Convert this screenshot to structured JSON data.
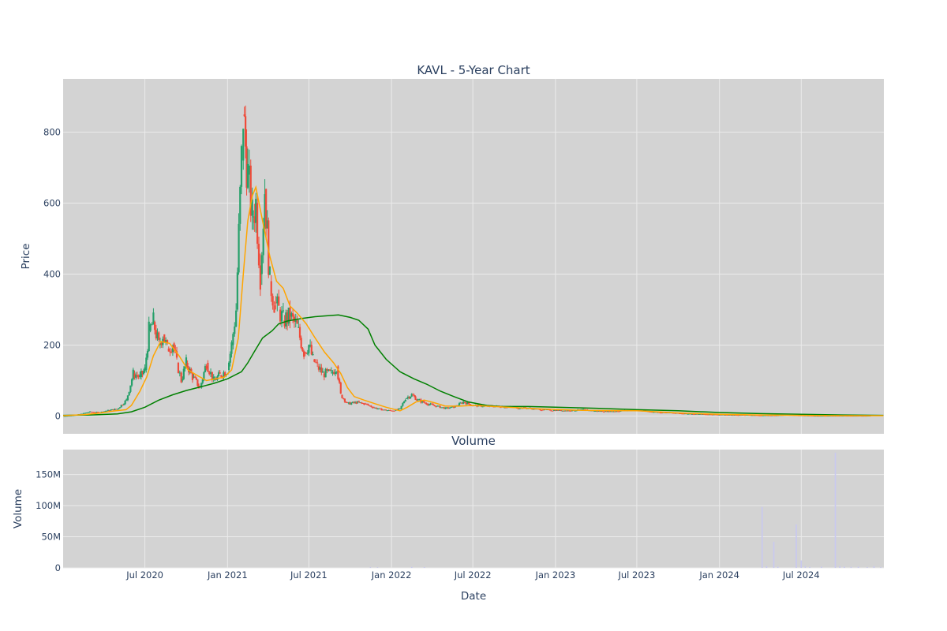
{
  "chart_data": [
    {
      "type": "candlestick",
      "title": "KAVL - 5-Year Chart",
      "ylabel": "Price",
      "ylim": [
        -50,
        950
      ],
      "yticks": [
        0,
        200,
        400,
        600,
        800
      ],
      "grid": true,
      "legend": "none",
      "colors": {
        "increasing": "#26a06a",
        "decreasing": "#ef4b3a",
        "short_ma": "#ffa500",
        "long_ma": "#008000",
        "plot_bg": "#d3d3d3"
      },
      "x_range": [
        "2020-01-01",
        "2025-01-01"
      ],
      "series": [
        {
          "kind": "ohlc",
          "points": [
            [
              "2020-01-01",
              0
            ],
            [
              "2020-01-21",
              2
            ],
            [
              "2020-02-10",
              6
            ],
            [
              "2020-03-01",
              12
            ],
            [
              "2020-03-21",
              10
            ],
            [
              "2020-04-10",
              16
            ],
            [
              "2020-05-01",
              20
            ],
            [
              "2020-05-21",
              45
            ],
            [
              "2020-06-05",
              120
            ],
            [
              "2020-06-20",
              110
            ],
            [
              "2020-07-01",
              130
            ],
            [
              "2020-07-10",
              240
            ],
            [
              "2020-07-20",
              265
            ],
            [
              "2020-08-01",
              200
            ],
            [
              "2020-08-10",
              230
            ],
            [
              "2020-08-20",
              190
            ],
            [
              "2020-09-01",
              205
            ],
            [
              "2020-09-10",
              150
            ],
            [
              "2020-09-20",
              100
            ],
            [
              "2020-10-01",
              150
            ],
            [
              "2020-10-15",
              110
            ],
            [
              "2020-11-01",
              80
            ],
            [
              "2020-11-15",
              150
            ],
            [
              "2020-12-01",
              100
            ],
            [
              "2020-12-15",
              115
            ],
            [
              "2021-01-01",
              130
            ],
            [
              "2021-01-10",
              200
            ],
            [
              "2021-01-20",
              300
            ],
            [
              "2021-02-01",
              720
            ],
            [
              "2021-02-05",
              850
            ],
            [
              "2021-02-10",
              760
            ],
            [
              "2021-02-15",
              680
            ],
            [
              "2021-02-25",
              560
            ],
            [
              "2021-03-05",
              600
            ],
            [
              "2021-03-15",
              400
            ],
            [
              "2021-03-25",
              640
            ],
            [
              "2021-04-05",
              380
            ],
            [
              "2021-04-15",
              320
            ],
            [
              "2021-04-25",
              300
            ],
            [
              "2021-05-05",
              270
            ],
            [
              "2021-05-20",
              280
            ],
            [
              "2021-06-05",
              250
            ],
            [
              "2021-06-20",
              180
            ],
            [
              "2021-07-01",
              200
            ],
            [
              "2021-07-10",
              160
            ],
            [
              "2021-07-20",
              140
            ],
            [
              "2021-08-01",
              120
            ],
            [
              "2021-08-20",
              120
            ],
            [
              "2021-09-01",
              140
            ],
            [
              "2021-09-10",
              60
            ],
            [
              "2021-09-25",
              35
            ],
            [
              "2021-10-15",
              38
            ],
            [
              "2021-11-01",
              35
            ],
            [
              "2021-11-20",
              25
            ],
            [
              "2021-12-10",
              18
            ],
            [
              "2022-01-01",
              15
            ],
            [
              "2022-01-20",
              20
            ],
            [
              "2022-02-01",
              50
            ],
            [
              "2022-02-15",
              60
            ],
            [
              "2022-03-01",
              45
            ],
            [
              "2022-03-20",
              35
            ],
            [
              "2022-04-10",
              28
            ],
            [
              "2022-05-01",
              22
            ],
            [
              "2022-05-20",
              25
            ],
            [
              "2022-06-10",
              40
            ],
            [
              "2022-07-01",
              30
            ],
            [
              "2022-08-01",
              28
            ],
            [
              "2022-09-01",
              27
            ],
            [
              "2022-10-01",
              24
            ],
            [
              "2022-11-01",
              22
            ],
            [
              "2022-12-01",
              18
            ],
            [
              "2023-01-01",
              16
            ],
            [
              "2023-02-01",
              15
            ],
            [
              "2023-03-01",
              18
            ],
            [
              "2023-04-01",
              14
            ],
            [
              "2023-05-01",
              13
            ],
            [
              "2023-06-01",
              15
            ],
            [
              "2023-07-01",
              17
            ],
            [
              "2023-08-01",
              12
            ],
            [
              "2023-09-01",
              10
            ],
            [
              "2023-10-01",
              8
            ],
            [
              "2023-11-01",
              6
            ],
            [
              "2023-12-01",
              5
            ],
            [
              "2024-01-01",
              4
            ],
            [
              "2024-02-01",
              3
            ],
            [
              "2024-03-01",
              3
            ],
            [
              "2024-04-01",
              2
            ],
            [
              "2024-05-01",
              2
            ],
            [
              "2024-06-01",
              3
            ],
            [
              "2024-07-01",
              2
            ],
            [
              "2024-08-01",
              1
            ],
            [
              "2024-09-01",
              1
            ],
            [
              "2024-10-01",
              1
            ],
            [
              "2024-11-01",
              1
            ],
            [
              "2024-12-01",
              1
            ]
          ]
        },
        {
          "kind": "ma_short",
          "points": [
            [
              "2020-01-01",
              1
            ],
            [
              "2020-02-15",
              4
            ],
            [
              "2020-03-20",
              8
            ],
            [
              "2020-04-20",
              14
            ],
            [
              "2020-05-20",
              18
            ],
            [
              "2020-06-01",
              30
            ],
            [
              "2020-06-20",
              70
            ],
            [
              "2020-07-05",
              110
            ],
            [
              "2020-07-20",
              170
            ],
            [
              "2020-08-05",
              210
            ],
            [
              "2020-08-25",
              205
            ],
            [
              "2020-09-15",
              170
            ],
            [
              "2020-10-05",
              130
            ],
            [
              "2020-10-25",
              115
            ],
            [
              "2020-11-15",
              100
            ],
            [
              "2020-12-05",
              105
            ],
            [
              "2020-12-25",
              110
            ],
            [
              "2021-01-10",
              130
            ],
            [
              "2021-01-25",
              220
            ],
            [
              "2021-02-05",
              400
            ],
            [
              "2021-02-15",
              550
            ],
            [
              "2021-02-25",
              620
            ],
            [
              "2021-03-05",
              645
            ],
            [
              "2021-03-20",
              550
            ],
            [
              "2021-04-05",
              450
            ],
            [
              "2021-04-20",
              380
            ],
            [
              "2021-05-05",
              360
            ],
            [
              "2021-05-20",
              310
            ],
            [
              "2021-06-05",
              290
            ],
            [
              "2021-06-25",
              260
            ],
            [
              "2021-07-15",
              220
            ],
            [
              "2021-08-05",
              180
            ],
            [
              "2021-08-25",
              150
            ],
            [
              "2021-09-10",
              120
            ],
            [
              "2021-09-25",
              80
            ],
            [
              "2021-10-10",
              55
            ],
            [
              "2021-11-01",
              45
            ],
            [
              "2021-11-25",
              35
            ],
            [
              "2021-12-20",
              25
            ],
            [
              "2022-01-20",
              15
            ],
            [
              "2022-02-05",
              25
            ],
            [
              "2022-02-25",
              40
            ],
            [
              "2022-03-15",
              45
            ],
            [
              "2022-04-05",
              38
            ],
            [
              "2022-05-01",
              28
            ],
            [
              "2022-06-01",
              28
            ],
            [
              "2022-07-01",
              30
            ],
            [
              "2022-08-01",
              28
            ],
            [
              "2022-10-01",
              24
            ],
            [
              "2022-12-01",
              20
            ],
            [
              "2023-03-01",
              16
            ],
            [
              "2023-07-01",
              15
            ],
            [
              "2023-10-01",
              9
            ],
            [
              "2024-01-01",
              5
            ],
            [
              "2024-04-01",
              3
            ],
            [
              "2024-07-01",
              2
            ],
            [
              "2024-10-01",
              1
            ],
            [
              "2024-12-31",
              1
            ]
          ]
        },
        {
          "kind": "ma_long",
          "points": [
            [
              "2020-01-01",
              2
            ],
            [
              "2020-03-01",
              3
            ],
            [
              "2020-05-01",
              6
            ],
            [
              "2020-06-01",
              12
            ],
            [
              "2020-07-01",
              25
            ],
            [
              "2020-08-01",
              45
            ],
            [
              "2020-09-01",
              60
            ],
            [
              "2020-10-01",
              72
            ],
            [
              "2020-11-01",
              82
            ],
            [
              "2020-12-01",
              92
            ],
            [
              "2021-01-01",
              105
            ],
            [
              "2021-02-01",
              125
            ],
            [
              "2021-02-15",
              150
            ],
            [
              "2021-03-01",
              180
            ],
            [
              "2021-03-20",
              220
            ],
            [
              "2021-04-10",
              240
            ],
            [
              "2021-04-25",
              260
            ],
            [
              "2021-05-15",
              268
            ],
            [
              "2021-06-15",
              275
            ],
            [
              "2021-07-15",
              280
            ],
            [
              "2021-08-15",
              283
            ],
            [
              "2021-09-05",
              285
            ],
            [
              "2021-10-01",
              278
            ],
            [
              "2021-10-20",
              270
            ],
            [
              "2021-11-10",
              245
            ],
            [
              "2021-11-25",
              200
            ],
            [
              "2021-12-20",
              160
            ],
            [
              "2022-01-20",
              125
            ],
            [
              "2022-02-20",
              105
            ],
            [
              "2022-03-20",
              90
            ],
            [
              "2022-04-20",
              70
            ],
            [
              "2022-05-20",
              55
            ],
            [
              "2022-06-20",
              40
            ],
            [
              "2022-08-01",
              30
            ],
            [
              "2022-09-01",
              27
            ],
            [
              "2022-11-01",
              27
            ],
            [
              "2023-01-01",
              25
            ],
            [
              "2023-04-01",
              22
            ],
            [
              "2023-07-01",
              18
            ],
            [
              "2023-10-01",
              15
            ],
            [
              "2024-01-01",
              10
            ],
            [
              "2024-04-01",
              7
            ],
            [
              "2024-07-01",
              5
            ],
            [
              "2024-10-01",
              3
            ],
            [
              "2024-12-31",
              2
            ]
          ]
        }
      ]
    },
    {
      "type": "bar",
      "title": "Volume",
      "xlabel": "Date",
      "ylabel": "Volume",
      "ylim": [
        0,
        190000000
      ],
      "yticks": [
        0,
        50000000,
        100000000,
        150000000
      ],
      "ytick_labels": [
        "0",
        "50M",
        "100M",
        "150M"
      ],
      "xticks": [
        "2020-07-01",
        "2021-01-01",
        "2021-07-01",
        "2022-01-01",
        "2022-07-01",
        "2023-01-01",
        "2023-07-01",
        "2024-01-01",
        "2024-07-01"
      ],
      "xtick_labels": [
        "Jul 2020",
        "Jan 2021",
        "Jul 2021",
        "Jan 2022",
        "Jul 2022",
        "Jan 2023",
        "Jul 2023",
        "Jan 2024",
        "Jul 2024"
      ],
      "grid": true,
      "colors": {
        "bar": "#c8c8f0",
        "plot_bg": "#d3d3d3"
      },
      "series": [
        {
          "name": "",
          "points": [
            [
              "2021-11-15",
              1000000
            ],
            [
              "2021-12-01",
              800000
            ],
            [
              "2022-02-15",
              1500000
            ],
            [
              "2022-03-15",
              1200000
            ],
            [
              "2024-04-05",
              98000000
            ],
            [
              "2024-04-15",
              3000000
            ],
            [
              "2024-05-01",
              42000000
            ],
            [
              "2024-05-10",
              2000000
            ],
            [
              "2024-06-20",
              70000000
            ],
            [
              "2024-07-01",
              12000000
            ],
            [
              "2024-07-10",
              3000000
            ],
            [
              "2024-07-20",
              1500000
            ],
            [
              "2024-08-15",
              2000000
            ],
            [
              "2024-09-15",
              185000000
            ],
            [
              "2024-09-25",
              3000000
            ],
            [
              "2024-10-05",
              2000000
            ],
            [
              "2024-10-20",
              1500000
            ],
            [
              "2024-11-05",
              2000000
            ],
            [
              "2024-11-25",
              1000000
            ],
            [
              "2024-12-10",
              3000000
            ],
            [
              "2024-12-25",
              1000000
            ]
          ]
        }
      ]
    }
  ]
}
